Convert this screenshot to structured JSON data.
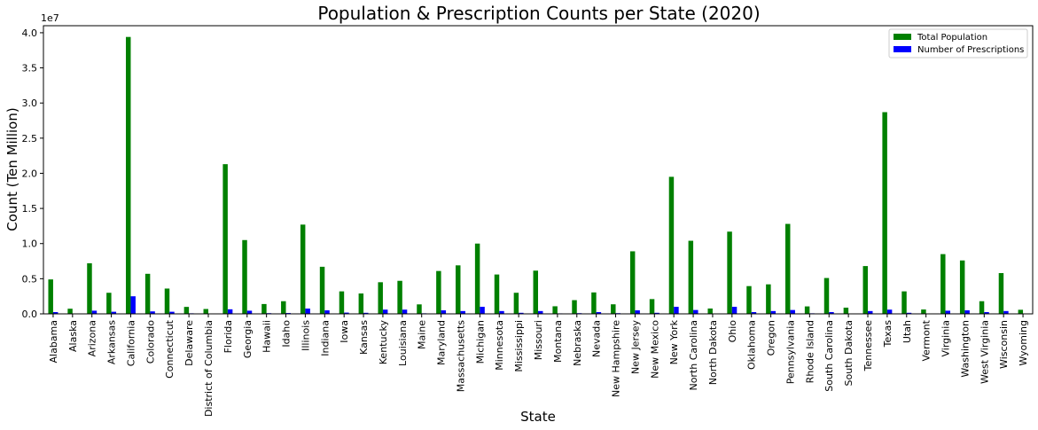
{
  "chart_data": {
    "type": "bar",
    "title": "Population & Prescription Counts per State (2020)",
    "xlabel": "State",
    "ylabel": "Count (Ten Million)",
    "y_offset_text": "1e7",
    "ylim": [
      0,
      41000000
    ],
    "yticks": [
      0,
      5000000,
      10000000,
      15000000,
      20000000,
      25000000,
      30000000,
      35000000,
      40000000
    ],
    "ytick_labels": [
      "0.0",
      "0.5",
      "1.0",
      "1.5",
      "2.0",
      "2.5",
      "3.0",
      "3.5",
      "4.0"
    ],
    "grid": false,
    "legend_position": "top-right",
    "categories": [
      "Alabama",
      "Alaska",
      "Arizona",
      "Arkansas",
      "California",
      "Colorado",
      "Connecticut",
      "Delaware",
      "District of Columbia",
      "Florida",
      "Georgia",
      "Hawaii",
      "Idaho",
      "Illinois",
      "Indiana",
      "Iowa",
      "Kansas",
      "Kentucky",
      "Louisiana",
      "Maine",
      "Maryland",
      "Massachusetts",
      "Michigan",
      "Minnesota",
      "Mississippi",
      "Missouri",
      "Montana",
      "Nebraska",
      "Nevada",
      "New Hampshire",
      "New Jersey",
      "New Mexico",
      "New York",
      "North Carolina",
      "North Dakota",
      "Ohio",
      "Oklahoma",
      "Oregon",
      "Pennsylvania",
      "Rhode Island",
      "South Carolina",
      "South Dakota",
      "Tennessee",
      "Texas",
      "Utah",
      "Vermont",
      "Virginia",
      "Washington",
      "West Virginia",
      "Wisconsin",
      "Wyoming"
    ],
    "series": [
      {
        "name": "Total Population",
        "color": "#008000",
        "values": [
          4900000,
          730000,
          7200000,
          3000000,
          39400000,
          5700000,
          3600000,
          990000,
          690000,
          21300000,
          10500000,
          1400000,
          1800000,
          12700000,
          6700000,
          3200000,
          2900000,
          4500000,
          4700000,
          1350000,
          6100000,
          6900000,
          10000000,
          5600000,
          3000000,
          6150000,
          1080000,
          1950000,
          3050000,
          1360000,
          8900000,
          2100000,
          19500000,
          10400000,
          760000,
          11700000,
          3950000,
          4200000,
          12800000,
          1060000,
          5100000,
          880000,
          6800000,
          28700000,
          3200000,
          620000,
          8500000,
          7600000,
          1800000,
          5800000,
          580000
        ]
      },
      {
        "name": "Number of Prescriptions",
        "color": "#0000ff",
        "values": [
          250000,
          50000,
          450000,
          300000,
          2500000,
          350000,
          300000,
          80000,
          50000,
          650000,
          450000,
          100000,
          120000,
          750000,
          500000,
          180000,
          150000,
          600000,
          600000,
          80000,
          500000,
          400000,
          1000000,
          400000,
          150000,
          400000,
          70000,
          100000,
          250000,
          100000,
          500000,
          150000,
          1000000,
          550000,
          50000,
          1000000,
          250000,
          400000,
          550000,
          80000,
          250000,
          60000,
          400000,
          600000,
          150000,
          50000,
          450000,
          500000,
          250000,
          400000,
          50000
        ]
      }
    ]
  }
}
